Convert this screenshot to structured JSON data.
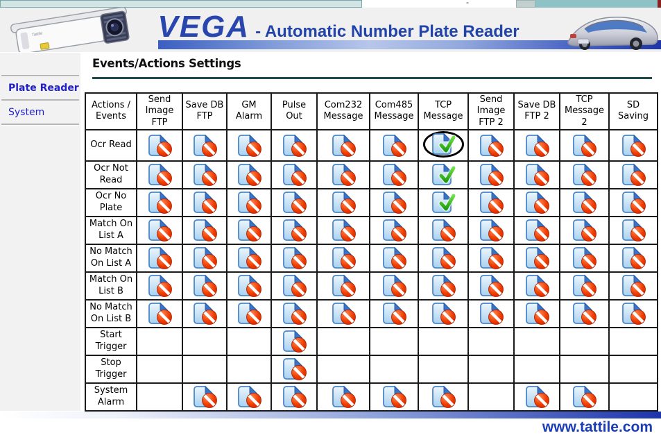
{
  "top_bar": {
    "dash": "-"
  },
  "header": {
    "brand": "VEGA",
    "title_rest": "- Automatic Number Plate Reader"
  },
  "sidebar": {
    "items": [
      {
        "label": "Plate Reader",
        "active": true
      },
      {
        "label": "System",
        "active": false
      }
    ]
  },
  "main": {
    "heading": "Events/Actions Settings"
  },
  "table": {
    "columns": [
      "Actions / Events",
      "Send Image FTP",
      "Save DB FTP",
      "GM Alarm",
      "Pulse Out",
      "Com232 Message",
      "Com485 Message",
      "TCP Message",
      "Send Image FTP 2",
      "Save DB FTP 2",
      "TCP Message 2",
      "SD Saving"
    ],
    "rows": [
      {
        "label": "Ocr Read",
        "cells": [
          "deny",
          "deny",
          "deny",
          "deny",
          "deny",
          "deny",
          "check_circled",
          "deny",
          "deny",
          "deny",
          "deny"
        ]
      },
      {
        "label": "Ocr Not Read",
        "cells": [
          "deny",
          "deny",
          "deny",
          "deny",
          "deny",
          "deny",
          "check",
          "deny",
          "deny",
          "deny",
          "deny"
        ]
      },
      {
        "label": "Ocr No Plate",
        "cells": [
          "deny",
          "deny",
          "deny",
          "deny",
          "deny",
          "deny",
          "check",
          "deny",
          "deny",
          "deny",
          "deny"
        ]
      },
      {
        "label": "Match On List A",
        "cells": [
          "deny",
          "deny",
          "deny",
          "deny",
          "deny",
          "deny",
          "deny",
          "deny",
          "deny",
          "deny",
          "deny"
        ]
      },
      {
        "label": "No Match On List A",
        "cells": [
          "deny",
          "deny",
          "deny",
          "deny",
          "deny",
          "deny",
          "deny",
          "deny",
          "deny",
          "deny",
          "deny"
        ]
      },
      {
        "label": "Match On List B",
        "cells": [
          "deny",
          "deny",
          "deny",
          "deny",
          "deny",
          "deny",
          "deny",
          "deny",
          "deny",
          "deny",
          "deny"
        ]
      },
      {
        "label": "No Match On List B",
        "cells": [
          "deny",
          "deny",
          "deny",
          "deny",
          "deny",
          "deny",
          "deny",
          "deny",
          "deny",
          "deny",
          "deny"
        ]
      },
      {
        "label": "Start Trigger",
        "cells": [
          "",
          "",
          "",
          "deny",
          "",
          "",
          "",
          "",
          "",
          "",
          ""
        ]
      },
      {
        "label": "Stop Trigger",
        "cells": [
          "",
          "",
          "",
          "deny",
          "",
          "",
          "",
          "",
          "",
          "",
          ""
        ]
      },
      {
        "label": "System Alarm",
        "cells": [
          "",
          "deny",
          "deny",
          "deny",
          "deny",
          "deny",
          "deny",
          "",
          "deny",
          "deny",
          ""
        ]
      }
    ],
    "icon_meanings": {
      "deny": "action disabled (document with red no-entry sign)",
      "check": "action enabled (document with green check)",
      "check_circled": "action enabled, hand-circled annotation"
    }
  },
  "footer": {
    "url": "www.tattile.com"
  },
  "colors": {
    "brand_blue": "#2946ae",
    "rule_teal": "#1d4a4a",
    "deny_red": "#dd2f00",
    "allow_green": "#3ab517",
    "link_blue": "#2121cc",
    "footer_blue": "#1c3cb4",
    "top_teal": "#8fc2c6"
  }
}
